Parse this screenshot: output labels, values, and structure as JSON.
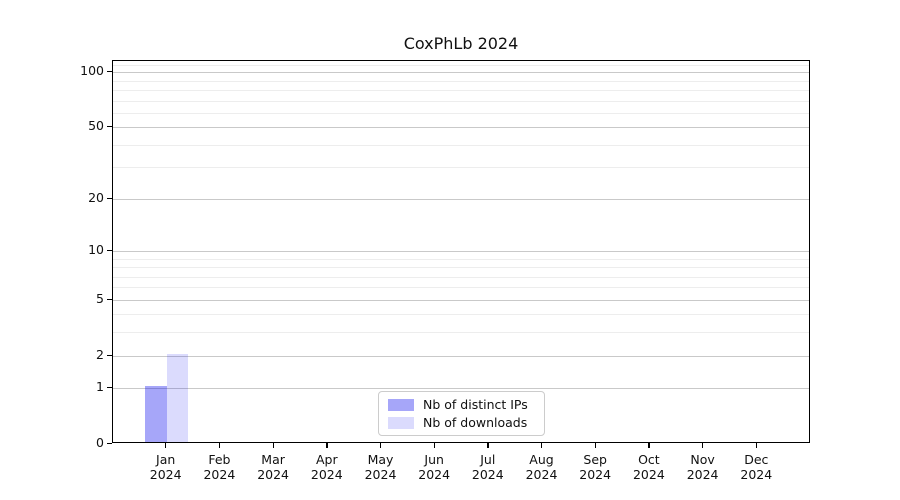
{
  "figure": {
    "background": "#ffffff"
  },
  "chart_data": {
    "type": "bar",
    "title": "CoxPhLb 2024",
    "categories": [
      "Jan",
      "Feb",
      "Mar",
      "Apr",
      "May",
      "Jun",
      "Jul",
      "Aug",
      "Sep",
      "Oct",
      "Nov",
      "Dec"
    ],
    "x_year_label": "2024",
    "series": [
      {
        "name": "Nb of distinct IPs",
        "color": "#0000ee",
        "alpha": 0.35,
        "values": [
          1,
          0,
          0,
          0,
          0,
          0,
          0,
          0,
          0,
          0,
          0,
          0
        ]
      },
      {
        "name": "Nb of downloads",
        "color": "#0000ee",
        "alpha": 0.14,
        "values": [
          2,
          0,
          0,
          0,
          0,
          0,
          0,
          0,
          0,
          0,
          0,
          0
        ]
      }
    ],
    "xlabel": "",
    "ylabel": "",
    "yscale": "log1p",
    "ylim": [
      0,
      115
    ],
    "yticks": [
      0,
      1,
      2,
      5,
      10,
      20,
      50,
      100
    ],
    "minor_yticks": [
      3,
      4,
      6,
      7,
      8,
      9,
      30,
      40,
      60,
      70,
      80,
      90,
      110
    ],
    "grid": true,
    "legend_position": "lower center"
  },
  "style": {
    "major_grid_color": "#c9c9c9",
    "minor_grid_color": "#ededed",
    "axis_color": "#000000",
    "text_color": "#111111",
    "legend_border_color": "#cccccc"
  }
}
